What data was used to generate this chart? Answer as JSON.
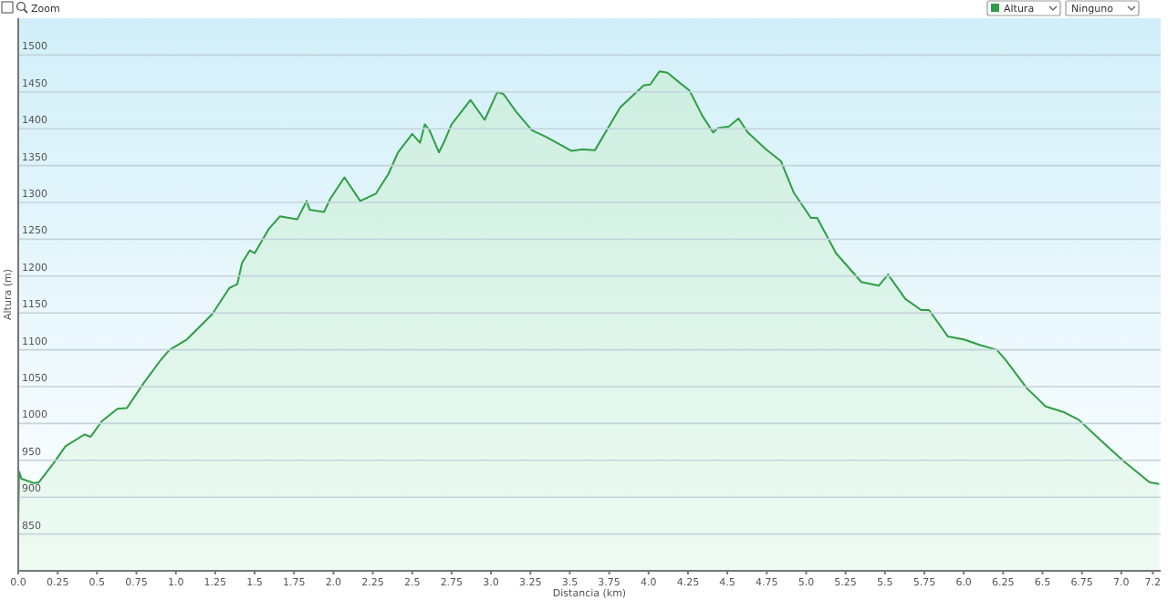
{
  "chart_data": {
    "type": "area",
    "xlabel": "Distancia (km)",
    "ylabel": "Altura (m)",
    "annotations": [
      "Zoom",
      "Altura",
      "Ninguno"
    ],
    "series": [
      {
        "color": "#2e9e44",
        "x": [
          0,
          0.005,
          0.02,
          0.1,
          0.13,
          0.22,
          0.3,
          0.42,
          0.46,
          0.53,
          0.63,
          0.69,
          0.8,
          0.9,
          0.96,
          1.07,
          1.23,
          1.34,
          1.39,
          1.42,
          1.47,
          1.5,
          1.59,
          1.66,
          1.77,
          1.83,
          1.85,
          1.94,
          1.98,
          2.07,
          2.17,
          2.27,
          2.35,
          2.41,
          2.5,
          2.55,
          2.58,
          2.61,
          2.67,
          2.7,
          2.75,
          2.87,
          2.96,
          3.04,
          3.08,
          3.16,
          3.26,
          3.35,
          3.51,
          3.58,
          3.66,
          3.82,
          3.97,
          4.01,
          4.07,
          4.12,
          4.2,
          4.26,
          4.34,
          4.41,
          4.44,
          4.51,
          4.57,
          4.63,
          4.74,
          4.84,
          4.92,
          5.03,
          5.07,
          5.19,
          5.26,
          5.35,
          5.46,
          5.52,
          5.63,
          5.73,
          5.78,
          5.9,
          6.0,
          6.11,
          6.21,
          6.27,
          6.4,
          6.52,
          6.64,
          6.73,
          6.87,
          7.02,
          7.18,
          7.24
        ],
        "values": [
          865,
          935,
          925,
          919,
          920,
          945,
          969,
          985,
          982,
          1003,
          1020,
          1021,
          1056,
          1085,
          1100,
          1114,
          1148,
          1184,
          1189,
          1218,
          1235,
          1231,
          1264,
          1281,
          1277,
          1302,
          1290,
          1287,
          1305,
          1334,
          1302,
          1312,
          1339,
          1368,
          1393,
          1381,
          1406,
          1398,
          1368,
          1381,
          1406,
          1439,
          1412,
          1450,
          1447,
          1423,
          1398,
          1389,
          1370,
          1372,
          1371,
          1429,
          1459,
          1460,
          1478,
          1476,
          1462,
          1452,
          1418,
          1395,
          1401,
          1403,
          1414,
          1395,
          1373,
          1356,
          1314,
          1279,
          1279,
          1231,
          1214,
          1192,
          1187,
          1202,
          1169,
          1154,
          1154,
          1118,
          1114,
          1106,
          1100,
          1085,
          1048,
          1023,
          1015,
          1005,
          977,
          948,
          920,
          918
        ]
      }
    ],
    "xlim": [
      0,
      7.25
    ],
    "ylim": [
      800,
      1550
    ],
    "xticks": [
      {
        "value": 0,
        "label": "0.0"
      },
      0.25,
      0.5,
      0.75,
      {
        "value": 1,
        "label": "1.0"
      },
      1.25,
      1.5,
      1.75,
      {
        "value": 2,
        "label": "2.0"
      },
      2.25,
      2.5,
      2.75,
      {
        "value": 3,
        "label": "3.0"
      },
      3.25,
      3.5,
      3.75,
      {
        "value": 4,
        "label": "4.0"
      },
      4.25,
      4.5,
      4.75,
      {
        "value": 5,
        "label": "5.0"
      },
      5.25,
      5.5,
      5.75,
      {
        "value": 6,
        "label": "6.0"
      },
      6.25,
      6.5,
      6.75,
      {
        "value": 7,
        "label": "7.0"
      },
      7.2
    ],
    "yticks": [
      850,
      900,
      950,
      1000,
      1050,
      1100,
      1150,
      1200,
      1250,
      1300,
      1350,
      1400,
      1450,
      1500
    ],
    "grid": "y",
    "marker": "none",
    "line_style": "solid"
  }
}
